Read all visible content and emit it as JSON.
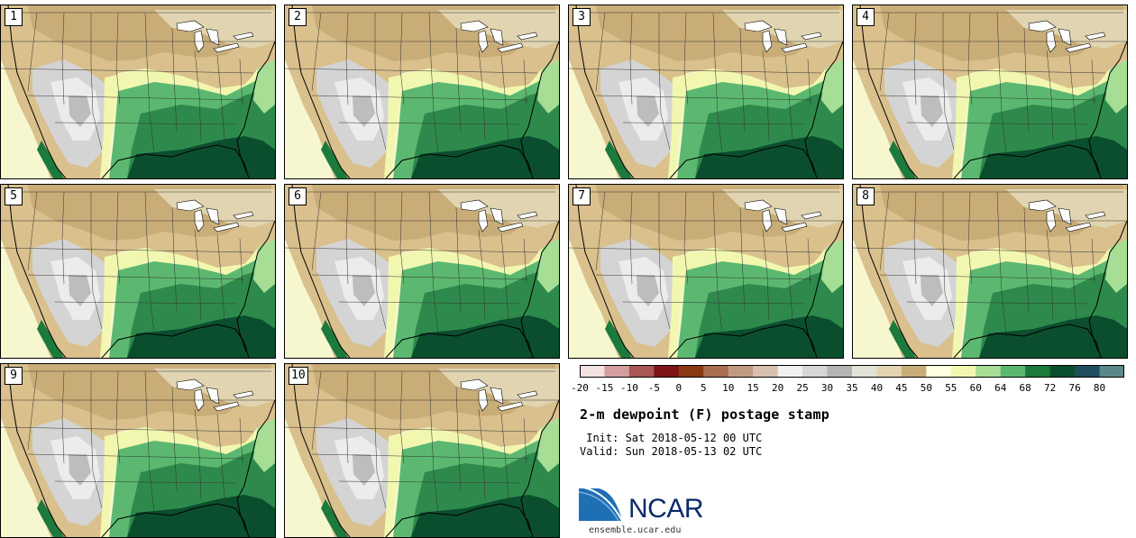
{
  "panels": [
    {
      "label": "1"
    },
    {
      "label": "2"
    },
    {
      "label": "3"
    },
    {
      "label": "4"
    },
    {
      "label": "5"
    },
    {
      "label": "6"
    },
    {
      "label": "7"
    },
    {
      "label": "8"
    },
    {
      "label": "9"
    },
    {
      "label": "10"
    }
  ],
  "colorbar": {
    "ticks": [
      "-20",
      "-15",
      "-10",
      "-5",
      "0",
      "5",
      "10",
      "15",
      "20",
      "25",
      "30",
      "35",
      "40",
      "45",
      "50",
      "55",
      "60",
      "64",
      "68",
      "72",
      "76",
      "80"
    ],
    "colors": [
      "#f3e2e2",
      "#d49e9e",
      "#a85656",
      "#7e1418",
      "#8a3a12",
      "#a86e50",
      "#c29a82",
      "#d8c0b0",
      "#f0f0f0",
      "#d6d6d6",
      "#b4b4b4",
      "#e2e2d6",
      "#e2d4b0",
      "#c8ae78",
      "#fffee0",
      "#f2f7b0",
      "#a6de96",
      "#5cb870",
      "#1c7a3c",
      "#0b4e2e",
      "#1f4e5e",
      "#5a8888"
    ]
  },
  "title": "2-m dewpoint (F) postage stamp",
  "init_line": " Init: Sat 2018-05-12 00 UTC",
  "valid_line": "Valid: Sun 2018-05-13 02 UTC",
  "logo": {
    "text": "NCAR",
    "url": "ensemble.ucar.edu"
  }
}
